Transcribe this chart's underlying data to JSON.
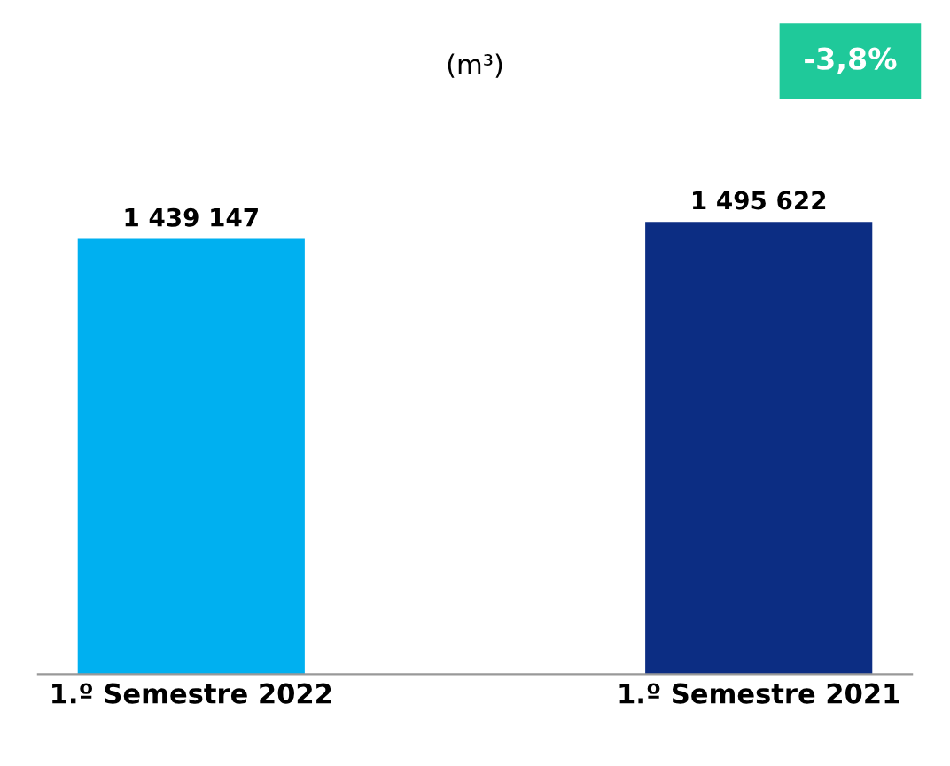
{
  "chart_data": {
    "type": "bar",
    "subtitle": "(m³)",
    "categories": [
      "1.º Semestre 2022",
      "1.º Semestre 2021"
    ],
    "values": [
      1439147,
      1495622
    ],
    "colors": [
      "#00b0f0",
      "#0c2d83"
    ],
    "value_labels": [
      "1 439 147",
      "1 495 622"
    ],
    "annotations": [
      "-3,8%"
    ],
    "grid": false,
    "legend": false
  }
}
